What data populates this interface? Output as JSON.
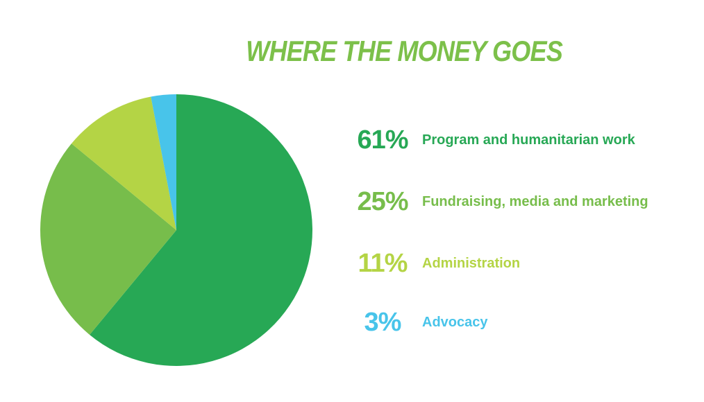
{
  "title": "WHERE THE MONEY GOES",
  "colors": {
    "title": "#7cc04a",
    "program": "#27a855",
    "fundraising": "#77bd4b",
    "administration": "#b4d445",
    "advocacy": "#48c4ea"
  },
  "chart_data": {
    "type": "pie",
    "title": "WHERE THE MONEY GOES",
    "slices": [
      {
        "label": "Program and humanitarian work",
        "value": 61,
        "display": "61%",
        "color": "#27a855"
      },
      {
        "label": "Fundraising, media and marketing",
        "value": 25,
        "display": "25%",
        "color": "#77bd4b"
      },
      {
        "label": "Administration",
        "value": 11,
        "display": "11%",
        "color": "#b4d445"
      },
      {
        "label": "Advocacy",
        "value": 3,
        "display": "3%",
        "color": "#48c4ea"
      }
    ],
    "legend_position": "right"
  }
}
